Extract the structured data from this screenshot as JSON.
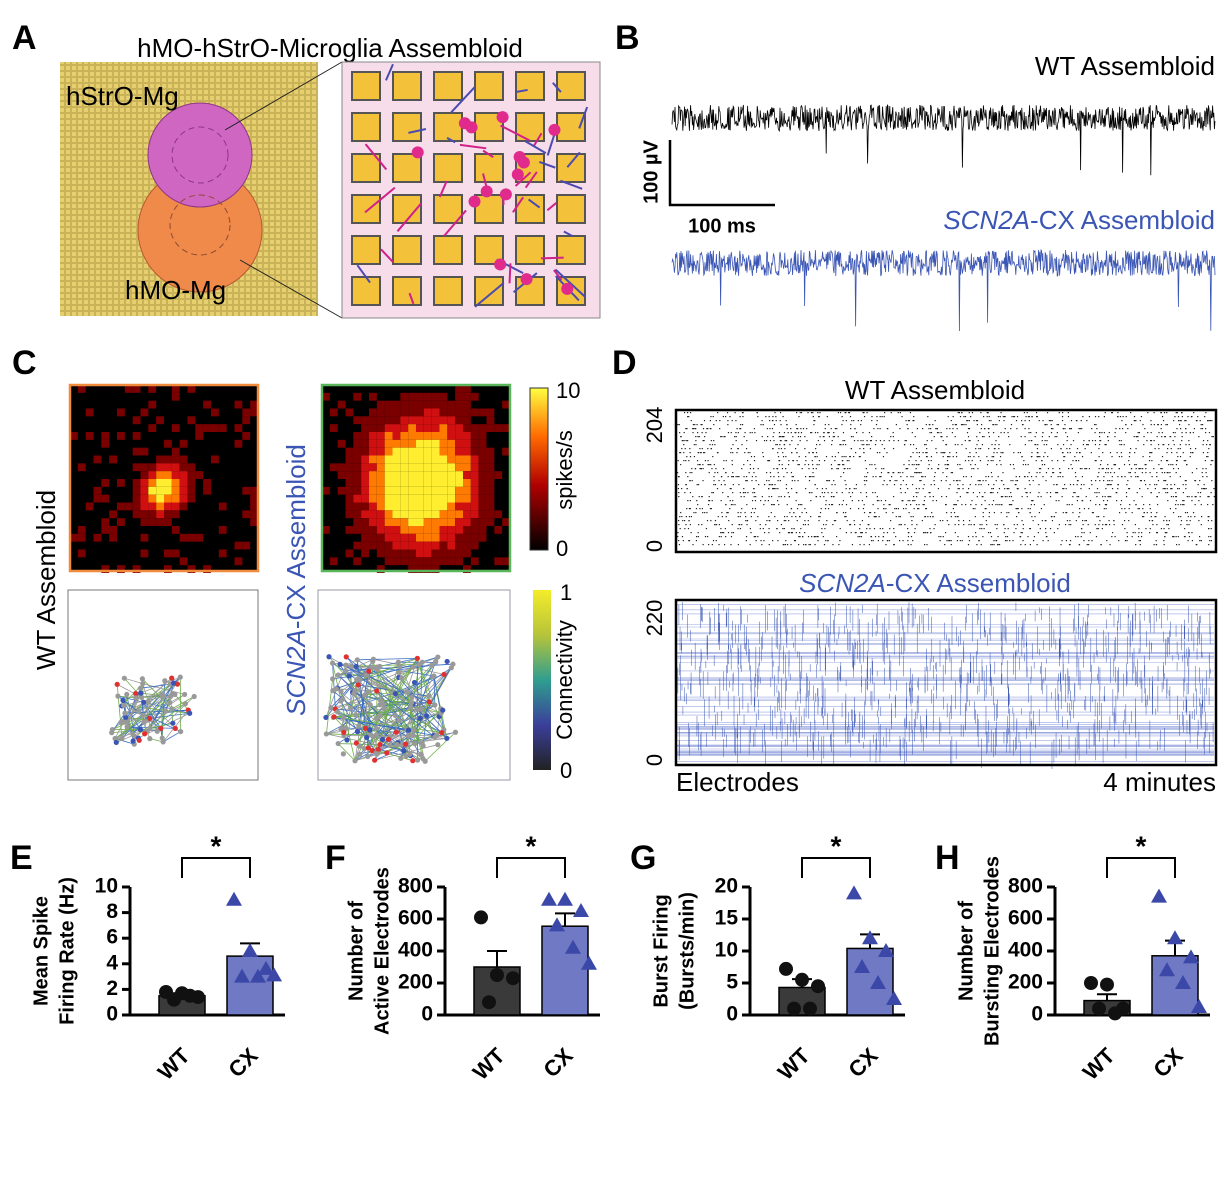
{
  "panels": {
    "A": {
      "letter": "A",
      "title": "hMO-hStrO-Microglia Assembloid",
      "top_label": "hStrO-Mg",
      "bottom_label": "hMO-Mg"
    },
    "B": {
      "letter": "B",
      "wt": "WT Assembloid",
      "scale_v": "100 µV",
      "scale_t": "100 ms",
      "cx_gene": "SCN2A",
      "cx_rest": "-CX Assembloid"
    },
    "C": {
      "letter": "C",
      "wt": "WT Assembloid",
      "cx_gene": "SCN2A",
      "cx_rest": "-CX Assembloid",
      "rate_max": "10",
      "rate_label": "spikes/s",
      "rate_min": "0",
      "conn_max": "1",
      "conn_label": "Connectivity",
      "conn_min": "0"
    },
    "D": {
      "letter": "D",
      "wt": "WT Assembloid",
      "wt_max": "204",
      "wt_min": "0",
      "cx_gene": "SCN2A",
      "cx_rest": "-CX Assembloid",
      "cx_max": "220",
      "cx_min": "0",
      "x_left": "Electrodes",
      "x_right": "4 minutes"
    }
  },
  "chart_data": [
    {
      "type": "bar",
      "panel": "E",
      "ylabel": [
        "Mean Spike",
        "Firing Rate (Hz)"
      ],
      "categories": [
        "WT",
        "CX"
      ],
      "values": [
        1.5,
        4.6
      ],
      "errors": [
        0.2,
        1.0
      ],
      "colors": [
        "#3a3a3a",
        "#7079c4"
      ],
      "point_colors": [
        "#111111",
        "#3b48a8"
      ],
      "points": [
        [
          1.8,
          1.7,
          1.4,
          1.2,
          1.5
        ],
        [
          9.0,
          5.0,
          3.6,
          3.0,
          3.0,
          3.1
        ]
      ],
      "annotation": "*",
      "ylim": [
        0,
        10
      ],
      "yticks": [
        0,
        2,
        4,
        6,
        8,
        10
      ]
    },
    {
      "type": "bar",
      "panel": "F",
      "ylabel": [
        "Number of",
        "Active Electrodes"
      ],
      "categories": [
        "WT",
        "CX"
      ],
      "values": [
        300,
        555
      ],
      "errors": [
        100,
        80
      ],
      "colors": [
        "#3a3a3a",
        "#7079c4"
      ],
      "point_colors": [
        "#111111",
        "#3b48a8"
      ],
      "points": [
        [
          610,
          250,
          230,
          80
        ],
        [
          720,
          720,
          650,
          560,
          420,
          320
        ]
      ],
      "annotation": "*",
      "ylim": [
        0,
        800
      ],
      "yticks": [
        0,
        200,
        400,
        600,
        800
      ]
    },
    {
      "type": "bar",
      "panel": "G",
      "ylabel": [
        "Burst Firing",
        "(Bursts/min)"
      ],
      "categories": [
        "WT",
        "CX"
      ],
      "values": [
        4.3,
        10.4
      ],
      "errors": [
        1.3,
        2.2
      ],
      "colors": [
        "#3a3a3a",
        "#7079c4"
      ],
      "point_colors": [
        "#111111",
        "#3b48a8"
      ],
      "points": [
        [
          7.2,
          5.5,
          4.5,
          1.0,
          1.0
        ],
        [
          19.0,
          12.0,
          10.0,
          7.5,
          5.0,
          2.5
        ]
      ],
      "annotation": "*",
      "ylim": [
        0,
        20
      ],
      "yticks": [
        0,
        5,
        10,
        15,
        20
      ]
    },
    {
      "type": "bar",
      "panel": "H",
      "ylabel": [
        "Number of",
        "Bursting Electrodes"
      ],
      "categories": [
        "WT",
        "CX"
      ],
      "values": [
        90,
        370
      ],
      "errors": [
        40,
        95
      ],
      "colors": [
        "#3a3a3a",
        "#7079c4"
      ],
      "point_colors": [
        "#111111",
        "#3b48a8"
      ],
      "points": [
        [
          200,
          190,
          40,
          40,
          10
        ],
        [
          740,
          480,
          360,
          280,
          200,
          50
        ]
      ],
      "annotation": "*",
      "ylim": [
        0,
        800
      ],
      "yticks": [
        0,
        200,
        400,
        600,
        800
      ]
    }
  ]
}
